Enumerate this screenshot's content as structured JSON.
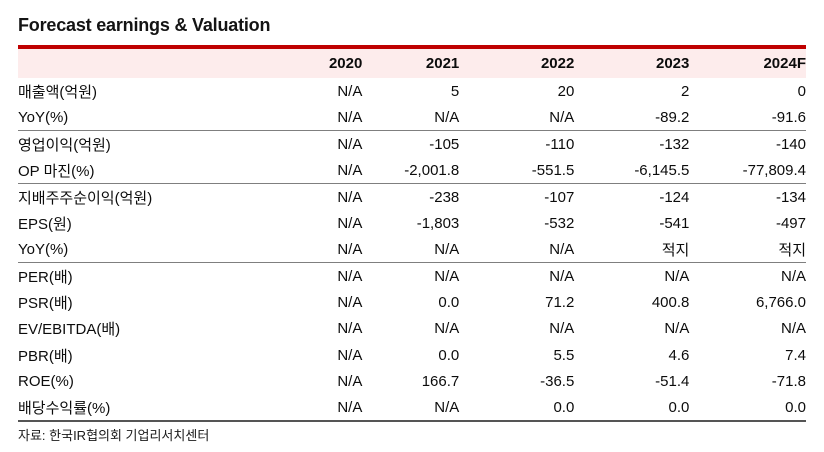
{
  "title": "Forecast earnings & Valuation",
  "table": {
    "metric_header": "",
    "columns": [
      "2020",
      "2021",
      "2022",
      "2023",
      "2024F"
    ],
    "rows": [
      {
        "label": "매출액(억원)",
        "values": [
          "N/A",
          "5",
          "20",
          "2",
          "0"
        ],
        "section_end": false
      },
      {
        "label": "YoY(%)",
        "values": [
          "N/A",
          "N/A",
          "N/A",
          "-89.2",
          "-91.6"
        ],
        "section_end": true
      },
      {
        "label": "영업이익(억원)",
        "values": [
          "N/A",
          "-105",
          "-110",
          "-132",
          "-140"
        ],
        "section_end": false
      },
      {
        "label": "OP 마진(%)",
        "values": [
          "N/A",
          "-2,001.8",
          "-551.5",
          "-6,145.5",
          "-77,809.4"
        ],
        "section_end": true
      },
      {
        "label": "지배주주순이익(억원)",
        "values": [
          "N/A",
          "-238",
          "-107",
          "-124",
          "-134"
        ],
        "section_end": false
      },
      {
        "label": "EPS(원)",
        "values": [
          "N/A",
          "-1,803",
          "-532",
          "-541",
          "-497"
        ],
        "section_end": false
      },
      {
        "label": "YoY(%)",
        "values": [
          "N/A",
          "N/A",
          "N/A",
          "적지",
          "적지"
        ],
        "section_end": true
      },
      {
        "label": "PER(배)",
        "values": [
          "N/A",
          "N/A",
          "N/A",
          "N/A",
          "N/A"
        ],
        "section_end": false
      },
      {
        "label": "PSR(배)",
        "values": [
          "N/A",
          "0.0",
          "71.2",
          "400.8",
          "6,766.0"
        ],
        "section_end": false
      },
      {
        "label": "EV/EBITDA(배)",
        "values": [
          "N/A",
          "N/A",
          "N/A",
          "N/A",
          "N/A"
        ],
        "section_end": false
      },
      {
        "label": "PBR(배)",
        "values": [
          "N/A",
          "0.0",
          "5.5",
          "4.6",
          "7.4"
        ],
        "section_end": false
      },
      {
        "label": "ROE(%)",
        "values": [
          "N/A",
          "166.7",
          "-36.5",
          "-51.4",
          "-71.8"
        ],
        "section_end": false
      },
      {
        "label": "배당수익률(%)",
        "values": [
          "N/A",
          "N/A",
          "0.0",
          "0.0",
          "0.0"
        ],
        "section_end": false
      }
    ]
  },
  "source": "자료: 한국IR협의회 기업리서치센터",
  "colors": {
    "accent_red": "#bf0000",
    "header_bg": "#fdecec",
    "separator_gray": "#7f7f7f",
    "bottom_border": "#555555"
  }
}
